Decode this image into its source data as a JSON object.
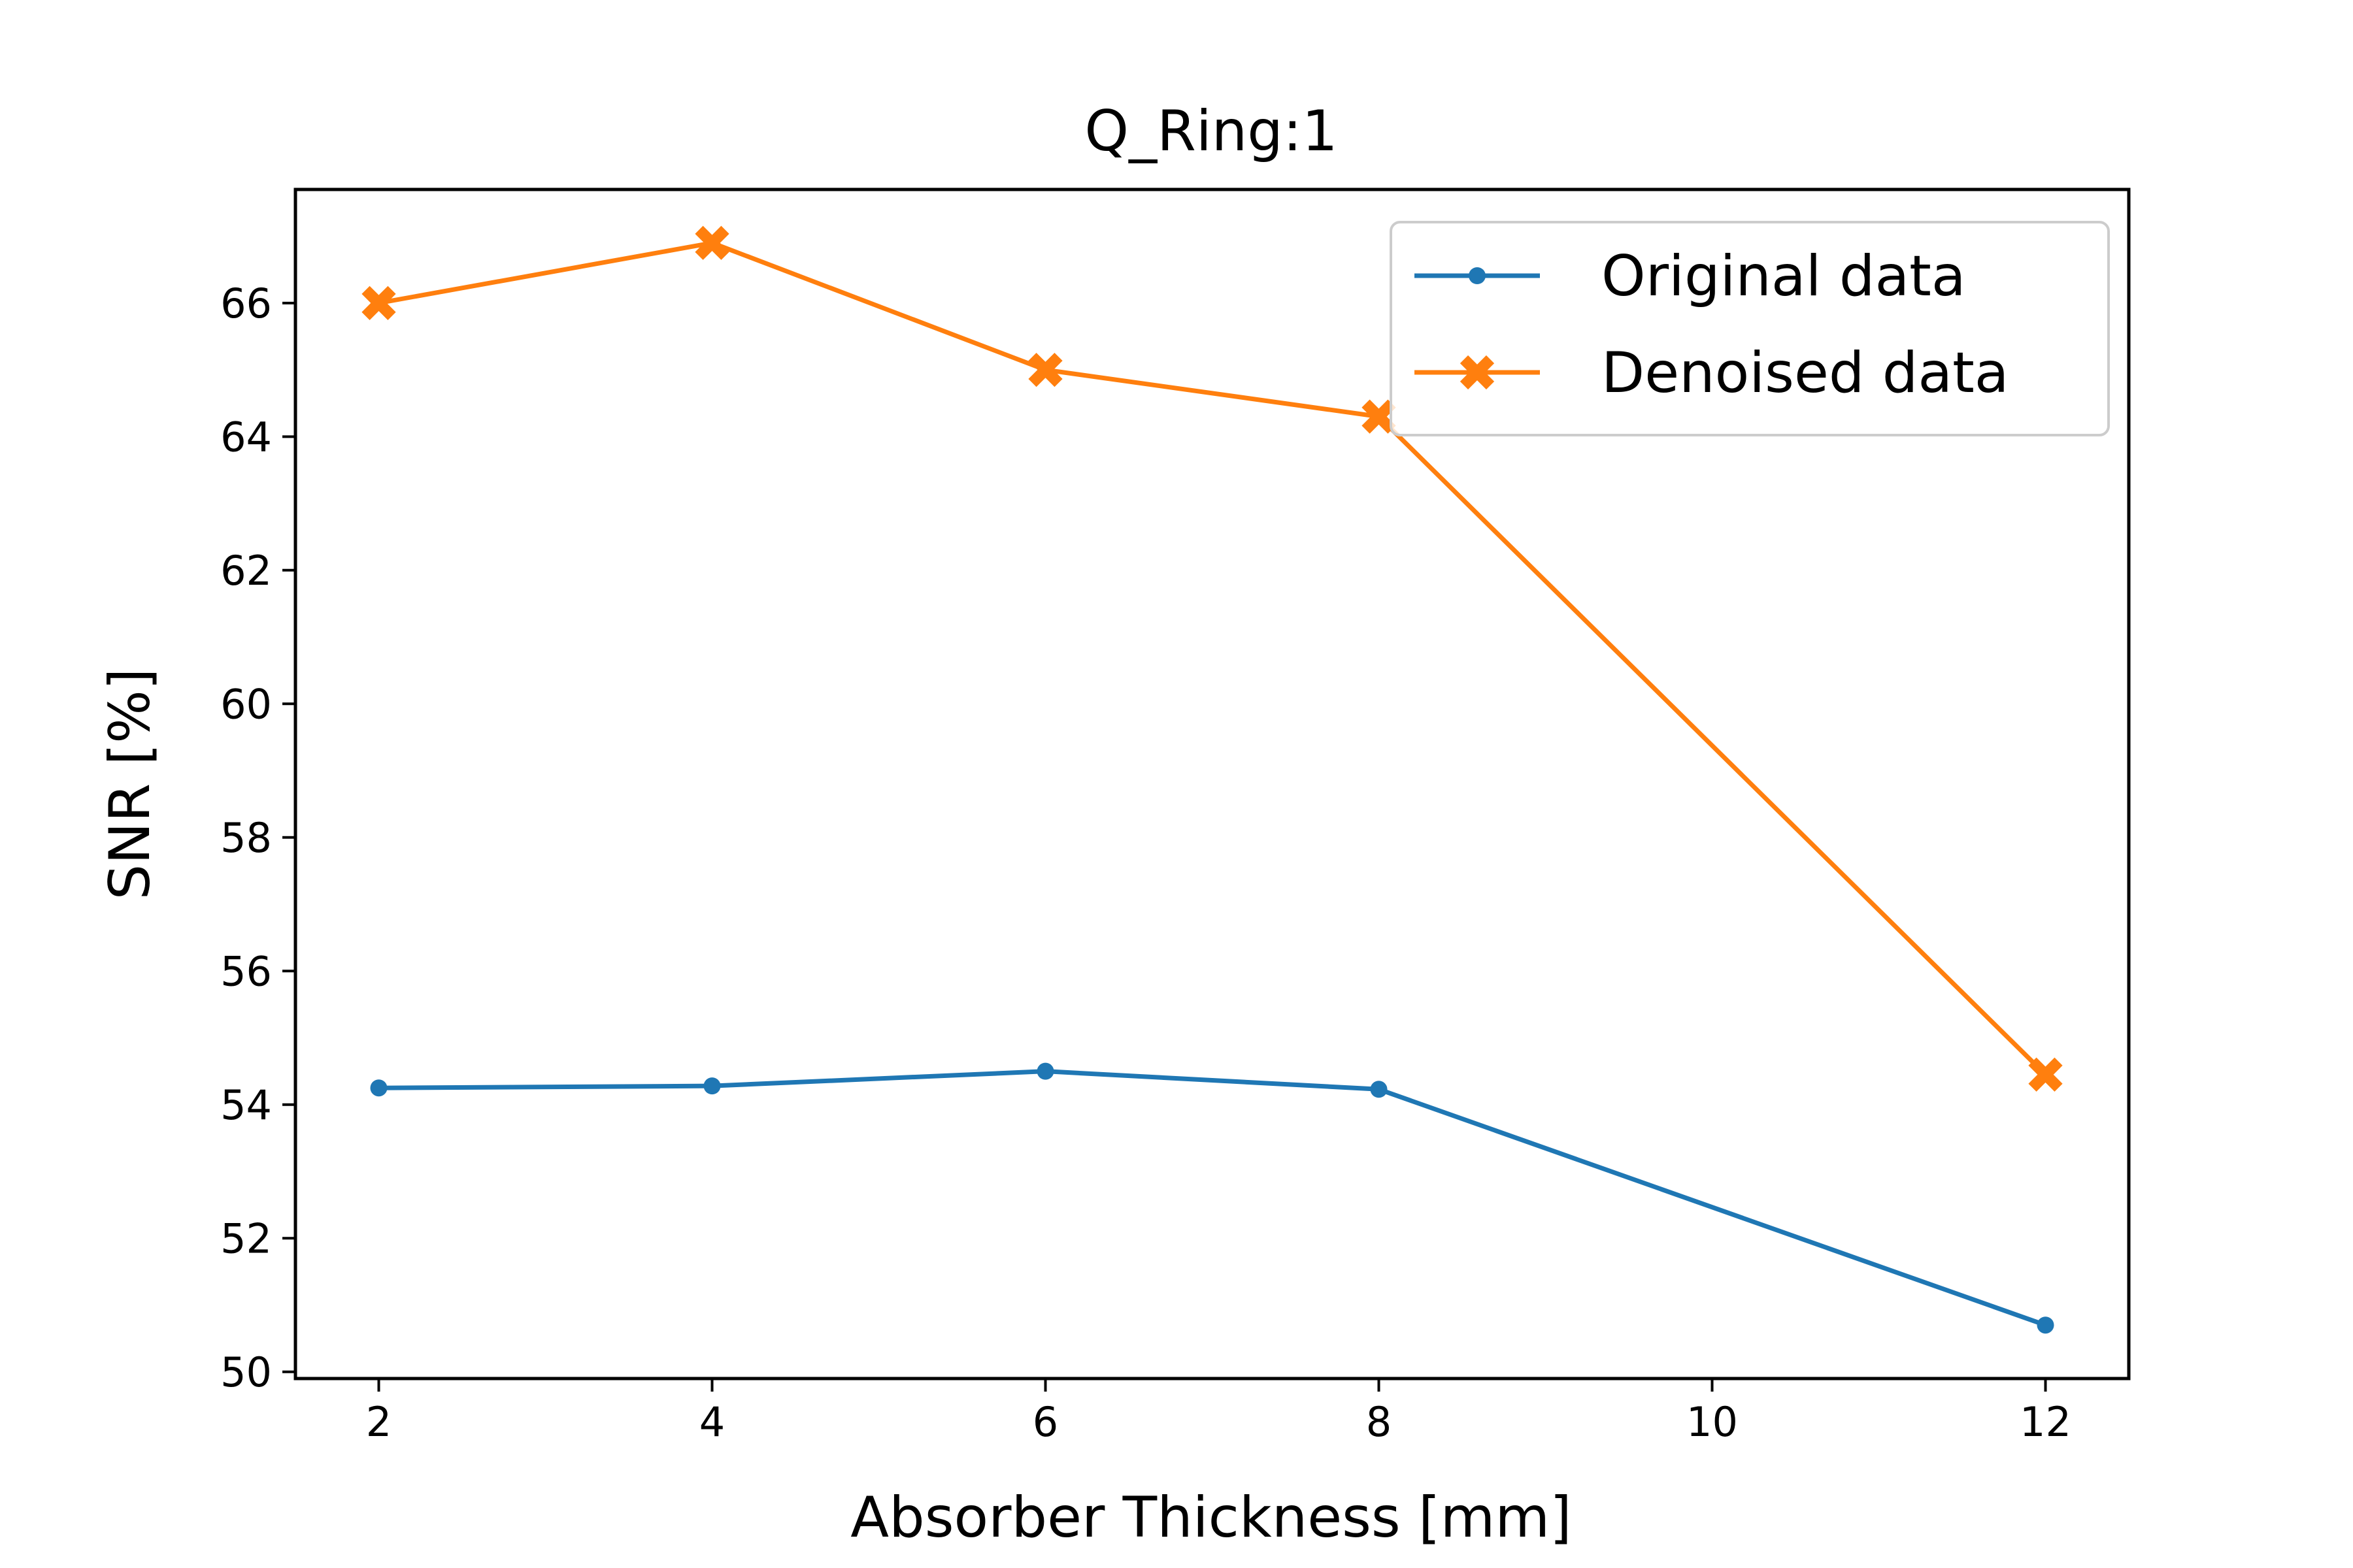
{
  "chart_data": {
    "type": "line",
    "title": "Q_Ring:1",
    "xlabel": "Absorber Thickness [mm]",
    "ylabel": "SNR [%]",
    "x": [
      2,
      4,
      6,
      8,
      12
    ],
    "xticks": [
      2,
      4,
      6,
      8,
      10,
      12
    ],
    "yticks": [
      50,
      52,
      54,
      56,
      58,
      60,
      62,
      64,
      66
    ],
    "xlim": [
      1.5,
      12.5
    ],
    "ylim": [
      49.9,
      67.7
    ],
    "grid": false,
    "legend_position": "top-right",
    "series": [
      {
        "name": "Original data",
        "color": "#1f77b4",
        "marker": "dot",
        "values": [
          54.25,
          54.28,
          54.5,
          54.23,
          50.7
        ]
      },
      {
        "name": "Denoised data",
        "color": "#ff7f0e",
        "marker": "x-filled",
        "values": [
          66.0,
          66.9,
          65.0,
          64.3,
          54.45
        ]
      }
    ]
  }
}
